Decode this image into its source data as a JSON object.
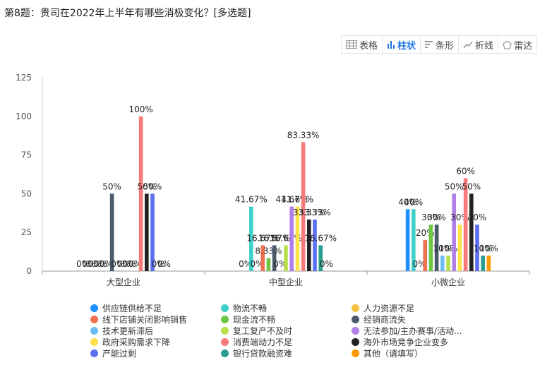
{
  "title": "第8题：贵司在2022年上半年有哪些消极变化？[多选题]",
  "toolbar": [
    {
      "label": "表格",
      "icon": "table-icon",
      "active": false
    },
    {
      "label": "柱状",
      "icon": "bar-chart-icon",
      "active": true
    },
    {
      "label": "条形",
      "icon": "horizontal-bar-icon",
      "active": false
    },
    {
      "label": "折线",
      "icon": "line-chart-icon",
      "active": false
    },
    {
      "label": "雷达",
      "icon": "radar-icon",
      "active": false
    }
  ],
  "chart_data": {
    "type": "bar",
    "categories": [
      "大型企业",
      "中型企业",
      "小微企业"
    ],
    "ylim": [
      0,
      125
    ],
    "yticks": [
      0,
      25,
      50,
      75,
      100,
      125
    ],
    "grid": false,
    "legend_position": "bottom",
    "series": [
      {
        "name": "供应链供给不足",
        "color": "#1e90ff",
        "values": [
          0,
          0,
          40
        ]
      },
      {
        "name": "物流不畅",
        "color": "#3ecfc8",
        "values": [
          0,
          41.67,
          40
        ]
      },
      {
        "name": "人力资源不足",
        "color": "#f5c242",
        "values": [
          0,
          0,
          0
        ]
      },
      {
        "name": "线下店铺关闭影响销售",
        "color": "#f07050",
        "values": [
          0,
          16.67,
          20
        ]
      },
      {
        "name": "现金流不畅",
        "color": "#6cc644",
        "values": [
          0,
          8.33,
          30
        ]
      },
      {
        "name": "经销商流失",
        "color": "#4a5a6a",
        "values": [
          50,
          16.67,
          30
        ]
      },
      {
        "name": "技术更新滞后",
        "color": "#6bbcf0",
        "values": [
          0,
          0,
          10
        ]
      },
      {
        "name": "复工复产不及时",
        "color": "#b5e04a",
        "values": [
          0,
          16.67,
          10
        ]
      },
      {
        "name": "无法参加/主办赛事/活动...",
        "color": "#b07fe6",
        "values": [
          0,
          41.67,
          50
        ]
      },
      {
        "name": "政府采购需求下降",
        "color": "#ffe24a",
        "values": [
          0,
          41.67,
          30
        ]
      },
      {
        "name": "消费端动力不足",
        "color": "#f87a7a",
        "values": [
          100,
          83.33,
          60
        ]
      },
      {
        "name": "海外市场竞争企业变多",
        "color": "#222222",
        "values": [
          50,
          33.33,
          50
        ]
      },
      {
        "name": "产能过剩",
        "color": "#5b6ff0",
        "values": [
          50,
          33.33,
          30
        ]
      },
      {
        "name": "银行贷款融资难",
        "color": "#2a9d8f",
        "values": [
          0,
          16.67,
          10
        ]
      },
      {
        "name": "其他（请填写）",
        "color": "#ff9900",
        "values": [
          0,
          0,
          10
        ]
      }
    ]
  }
}
